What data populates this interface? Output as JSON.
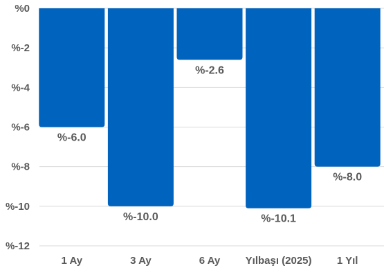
{
  "chart_data": {
    "type": "bar",
    "categories": [
      "1 Ay",
      "3 Ay",
      "6 Ay",
      "Yılbaşı (2025)",
      "1 Yıl"
    ],
    "values": [
      -6.0,
      -10.0,
      -2.6,
      -10.1,
      -8.0
    ],
    "data_labels": [
      "%-6.0",
      "%-10.0",
      "%-2.6",
      "%-10.1",
      "%-8.0"
    ],
    "y_ticks": [
      0,
      -2,
      -4,
      -6,
      -8,
      -10,
      -12
    ],
    "y_tick_labels": [
      "%0",
      "%-2",
      "%-4",
      "%-6",
      "%-8",
      "%-10",
      "%-12"
    ],
    "ylim": [
      -12,
      0
    ],
    "grid": true,
    "legend": "none",
    "bar_color": "#0063BE",
    "grid_color": "#D9D9D9",
    "text_color": "#595959"
  }
}
